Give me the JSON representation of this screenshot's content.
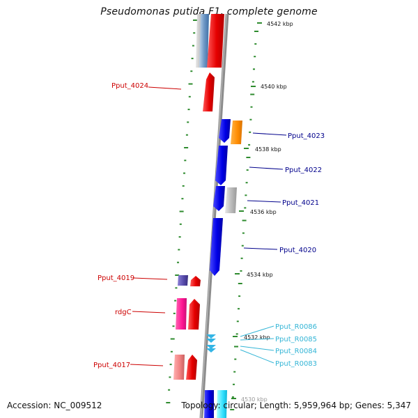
{
  "title": "Pseudomonas putida F1, complete genome",
  "footer": {
    "accession": "Accession: NC_009512",
    "topology": "Topology: circular; Length: 5,959,964 bp; Genes: 5,347"
  },
  "colors": {
    "backbone": "#8c8c8c",
    "tick_green": "#2e8b2e",
    "label_red": "#cc0000",
    "label_blue": "#00008b",
    "label_cyan": "#33b5d6"
  },
  "scale_labels": [
    "4542 kbp",
    "4540 kbp",
    "4538 kbp",
    "4536 kbp",
    "4534 kbp",
    "4532 kbp",
    "4530 kbp"
  ],
  "gene_labels": {
    "left": [
      "Pput_4024",
      "Pput_4019",
      "rdgC",
      "Pput_4017"
    ],
    "right_blue": [
      "Pput_4023",
      "Pput_4022",
      "Pput_4021",
      "Pput_4020"
    ],
    "right_cyan": [
      "Pput_R0086",
      "Pput_R0085",
      "Pput_R0084",
      "Pput_R0083"
    ]
  }
}
